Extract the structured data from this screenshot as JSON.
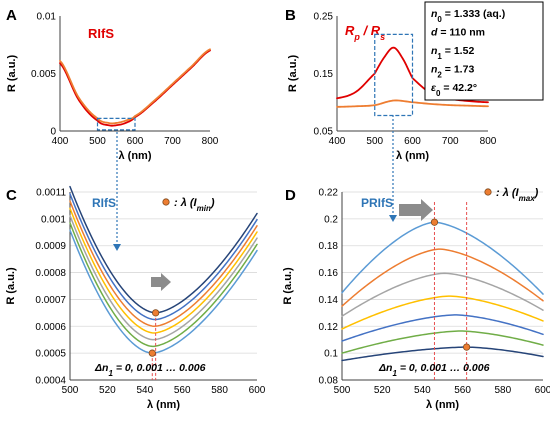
{
  "colors": {
    "axis": "#404040",
    "grid": "#d9d9d9",
    "red": "#e00000",
    "orange": "#ee7d31",
    "blue_label": "#2e75b6",
    "dashed_blue": "#2e75b6",
    "dashed_red": "#e85050",
    "marker_fill": "#ed7d31",
    "marker_stroke": "#7f4a1e",
    "arrow_gray": "#8c8c8c",
    "family": [
      "#6aa5d9",
      "#70ad47",
      "#a5a5a5",
      "#ffc000",
      "#ed7d31",
      "#5b9bd5",
      "#264478"
    ],
    "family_D": [
      "#264478",
      "#70ad47",
      "#5b9bd5",
      "#ffc000",
      "#a5a5a5",
      "#ed7d31",
      "#5b9bd5"
    ]
  },
  "chart_data": [
    {
      "panel": "A",
      "type": "line",
      "label": "RIfS",
      "xlabel": "λ (nm)",
      "ylabel": "R (a.u.)",
      "xlim": [
        400,
        800
      ],
      "ylim": [
        0,
        0.01
      ],
      "xticks": [
        "400",
        "500",
        "600",
        "700",
        "800"
      ],
      "yticks": [
        "0",
        "0.005",
        "0.01"
      ],
      "grid": false,
      "series": [
        {
          "color": "red",
          "x": [
            400,
            450,
            500,
            530,
            550,
            575,
            600,
            650,
            700,
            750,
            800
          ],
          "y": [
            0.0059,
            0.0027,
            0.0009,
            0.0005,
            0.0005,
            0.0007,
            0.0012,
            0.0025,
            0.004,
            0.0055,
            0.007
          ]
        },
        {
          "color": "orange",
          "x": [
            400,
            450,
            500,
            530,
            550,
            575,
            600,
            650,
            700,
            750,
            800
          ],
          "y": [
            0.0061,
            0.0029,
            0.0011,
            0.0007,
            0.0007,
            0.0009,
            0.0013,
            0.0026,
            0.0041,
            0.0056,
            0.0071
          ]
        }
      ],
      "zoom_box": {
        "x": [
          500,
          600
        ],
        "y": [
          0.0001,
          0.0011
        ]
      }
    },
    {
      "panel": "B",
      "type": "line",
      "label": "Rp / Rs",
      "xlabel": "λ (nm)",
      "ylabel": "R (a.u.)",
      "xlim": [
        400,
        800
      ],
      "ylim": [
        0.05,
        0.25
      ],
      "xticks": [
        "400",
        "500",
        "600",
        "700",
        "800"
      ],
      "yticks": [
        "0.05",
        "0.15",
        "0.25"
      ],
      "grid": false,
      "series": [
        {
          "color": "red",
          "x": [
            400,
            450,
            500,
            525,
            550,
            575,
            600,
            650,
            700,
            750,
            800
          ],
          "y": [
            0.107,
            0.118,
            0.15,
            0.178,
            0.195,
            0.175,
            0.142,
            0.115,
            0.106,
            0.102,
            0.1
          ]
        },
        {
          "color": "orange",
          "x": [
            400,
            450,
            500,
            550,
            600,
            650,
            700,
            750,
            800
          ],
          "y": [
            0.092,
            0.093,
            0.095,
            0.103,
            0.1,
            0.097,
            0.095,
            0.094,
            0.093
          ]
        }
      ],
      "zoom_box": {
        "x": [
          500,
          600
        ],
        "y": [
          0.077,
          0.218
        ]
      },
      "params": [
        {
          "sym": "n",
          "sub": "0",
          "val": " = 1.333 (aq.)"
        },
        {
          "sym": "d",
          "sub": "",
          "val": " = 110 nm"
        },
        {
          "sym": "n",
          "sub": "1",
          "val": " = 1.52"
        },
        {
          "sym": "n",
          "sub": "2",
          "val": " = 1.73"
        },
        {
          "sym": "ε",
          "sub": "0",
          "val": " = 42.2°"
        }
      ]
    },
    {
      "panel": "C",
      "type": "line",
      "label": "RIfS",
      "legend": ": λ (Imin)",
      "annotation": "Δn1 = 0, 0.001 … 0.006",
      "xlabel": "λ (nm)",
      "ylabel": "R (a.u.)",
      "xlim": [
        500,
        600
      ],
      "ylim": [
        0.0004,
        0.0011
      ],
      "xticks": [
        "500",
        "520",
        "540",
        "560",
        "580",
        "600"
      ],
      "yticks": [
        "0.0004",
        "0.0005",
        "0.0006",
        "0.0007",
        "0.0008",
        "0.0009",
        "0.001",
        "0.0011"
      ],
      "grid": true,
      "series": [
        {
          "lam_min": 544.0,
          "r_min": 0.0005,
          "r_left": 0.000958,
          "r_right": 0.000882
        },
        {
          "lam_min": 544.3,
          "r_min": 0.000525,
          "r_left": 0.000985,
          "r_right": 0.000905
        },
        {
          "lam_min": 544.6,
          "r_min": 0.00055,
          "r_left": 0.001012,
          "r_right": 0.000928
        },
        {
          "lam_min": 544.9,
          "r_min": 0.000575,
          "r_left": 0.001039,
          "r_right": 0.000951
        },
        {
          "lam_min": 545.2,
          "r_min": 0.0006,
          "r_left": 0.001066,
          "r_right": 0.000974
        },
        {
          "lam_min": 545.5,
          "r_min": 0.000625,
          "r_left": 0.001093,
          "r_right": 0.000997
        },
        {
          "lam_min": 545.8,
          "r_min": 0.00065,
          "r_left": 0.00112,
          "r_right": 0.00102
        }
      ],
      "markers": [
        {
          "x": 544.0,
          "y": 0.0005
        },
        {
          "x": 545.8,
          "y": 0.00065
        }
      ]
    },
    {
      "panel": "D",
      "type": "line",
      "label": "PRIfS",
      "legend": ": λ (Imax)",
      "annotation": "Δn1 = 0, 0.001 … 0.006",
      "xlabel": "λ (nm)",
      "ylabel": "R (a.u.)",
      "xlim": [
        500,
        600
      ],
      "ylim": [
        0.08,
        0.22
      ],
      "xticks": [
        "500",
        "520",
        "540",
        "560",
        "580",
        "600"
      ],
      "yticks": [
        "0.08",
        "0.1",
        "0.12",
        "0.14",
        "0.16",
        "0.18",
        "0.2",
        "0.22"
      ],
      "grid": true,
      "series": [
        {
          "lam_max": 562.0,
          "peak": 0.1045,
          "left": 0.0945,
          "right": 0.0975
        },
        {
          "lam_max": 559.0,
          "peak": 0.1165,
          "left": 0.1,
          "right": 0.106
        },
        {
          "lam_max": 556.5,
          "peak": 0.1285,
          "left": 0.109,
          "right": 0.114
        },
        {
          "lam_max": 553.5,
          "peak": 0.1425,
          "left": 0.118,
          "right": 0.124
        },
        {
          "lam_max": 551.0,
          "peak": 0.1595,
          "left": 0.1275,
          "right": 0.132
        },
        {
          "lam_max": 548.5,
          "peak": 0.1775,
          "left": 0.135,
          "right": 0.139
        },
        {
          "lam_max": 546.0,
          "peak": 0.1975,
          "left": 0.145,
          "right": 0.144
        }
      ],
      "markers": [
        {
          "x": 546.0,
          "y": 0.1975
        },
        {
          "x": 562.0,
          "y": 0.1045
        }
      ]
    }
  ]
}
